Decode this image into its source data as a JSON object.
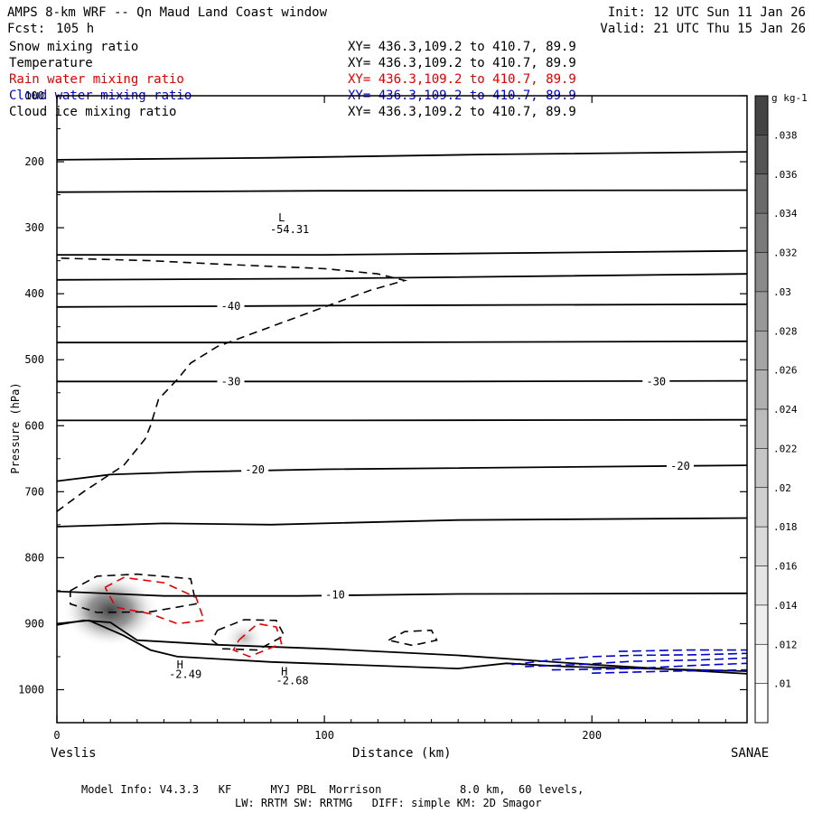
{
  "header": {
    "title": "AMPS 8-km WRF -- Qn Maud Land Coast window",
    "fcst_label": "Fcst:",
    "fcst_value": "105 h",
    "init": "Init: 12 UTC Sun 11 Jan 26",
    "valid": "Valid: 21 UTC Thu 15 Jan 26"
  },
  "fields": [
    {
      "name": "Snow mixing ratio",
      "xy": "XY= 436.3,109.2 to 410.7, 89.9",
      "color": "#000000"
    },
    {
      "name": "Temperature",
      "xy": "XY= 436.3,109.2 to 410.7, 89.9",
      "color": "#000000"
    },
    {
      "name": "Rain water mixing ratio",
      "xy": "XY= 436.3,109.2 to 410.7, 89.9",
      "color": "#e00000"
    },
    {
      "name": "Cloud water mixing ratio",
      "xy": "XY= 436.3,109.2 to 410.7, 89.9",
      "color": "#0000cc"
    },
    {
      "name": "Cloud ice mixing ratio",
      "xy": "XY= 436.3,109.2 to 410.7, 89.9",
      "color": "#000000"
    }
  ],
  "footer": {
    "line1": "Model Info: V4.3.3   KF      MYJ PBL  Morrison            8.0 km,  60 levels,",
    "line2": "LW: RRTM SW: RRTMG   DIFF: simple KM: 2D Smagor"
  },
  "chart_data": {
    "type": "contour",
    "xlabel": "Distance (km)",
    "ylabel": "Pressure (hPa)",
    "xlim": [
      0,
      258
    ],
    "ylim": [
      1050,
      100
    ],
    "x_ticks": [
      0,
      100,
      200
    ],
    "y_ticks": [
      100,
      200,
      300,
      400,
      500,
      600,
      700,
      800,
      900,
      1000
    ],
    "left_endpoint": "Veslis",
    "right_endpoint": "SANAE",
    "colorbar": {
      "unit": "g kg-1",
      "levels": [
        ".01",
        ".012",
        ".014",
        ".016",
        ".018",
        ".02",
        ".022",
        ".024",
        ".026",
        ".028",
        ".03",
        ".032",
        ".034",
        ".036",
        ".038"
      ],
      "colors": [
        "#ffffff",
        "#f6f6f6",
        "#eeeeee",
        "#e4e4e4",
        "#dadada",
        "#d0d0d0",
        "#c6c6c6",
        "#bcbcbc",
        "#b0b0b0",
        "#a4a4a4",
        "#989898",
        "#8a8a8a",
        "#7a7a7a",
        "#6a6a6a",
        "#555555",
        "#444444"
      ]
    },
    "temperature_contours": [
      {
        "points": [
          [
            0,
            197
          ],
          [
            80,
            194
          ],
          [
            160,
            189
          ],
          [
            258,
            185
          ]
        ]
      },
      {
        "points": [
          [
            0,
            246
          ],
          [
            100,
            244
          ],
          [
            258,
            243
          ]
        ]
      },
      {
        "points": [
          [
            0,
            341
          ],
          [
            100,
            341
          ],
          [
            258,
            335
          ]
        ]
      },
      {
        "points": [
          [
            0,
            379
          ],
          [
            100,
            377
          ],
          [
            258,
            370
          ]
        ]
      },
      {
        "points": [
          [
            0,
            420
          ],
          [
            60,
            419
          ],
          [
            100,
            418
          ],
          [
            258,
            416
          ]
        ],
        "label": "-40",
        "label_at": [
          65,
          419
        ]
      },
      {
        "points": [
          [
            0,
            474
          ],
          [
            100,
            474
          ],
          [
            258,
            472
          ]
        ]
      },
      {
        "points": [
          [
            0,
            533
          ],
          [
            60,
            533
          ],
          [
            150,
            533
          ],
          [
            258,
            532
          ]
        ],
        "labels": [
          {
            "text": "-30",
            "at": [
              65,
              533
            ]
          },
          {
            "text": "-30",
            "at": [
              224,
              533
            ]
          }
        ]
      },
      {
        "points": [
          [
            0,
            592
          ],
          [
            100,
            592
          ],
          [
            258,
            591
          ]
        ]
      },
      {
        "points": [
          [
            0,
            684
          ],
          [
            20,
            674
          ],
          [
            50,
            670
          ],
          [
            100,
            666
          ],
          [
            258,
            660
          ]
        ],
        "labels": [
          {
            "text": "-20",
            "at": [
              74,
              667
            ]
          },
          {
            "text": "-20",
            "at": [
              233,
              661
            ]
          }
        ]
      },
      {
        "points": [
          [
            0,
            753
          ],
          [
            40,
            748
          ],
          [
            80,
            750
          ],
          [
            150,
            743
          ],
          [
            258,
            740
          ]
        ]
      },
      {
        "points": [
          [
            0,
            851
          ],
          [
            40,
            858
          ],
          [
            90,
            858
          ],
          [
            150,
            855
          ],
          [
            258,
            854
          ]
        ],
        "label": "-10",
        "label_at": [
          104,
          856
        ]
      },
      {
        "points": [
          [
            0,
            902
          ],
          [
            10,
            895
          ],
          [
            20,
            898
          ],
          [
            30,
            925
          ],
          [
            60,
            932
          ],
          [
            100,
            938
          ],
          [
            150,
            948
          ],
          [
            200,
            962
          ],
          [
            258,
            976
          ]
        ]
      },
      {
        "points": [
          [
            0,
            900
          ],
          [
            12,
            895
          ],
          [
            25,
            918
          ],
          [
            35,
            940
          ],
          [
            45,
            950
          ],
          [
            80,
            958
          ],
          [
            150,
            968
          ],
          [
            168,
            960
          ],
          [
            190,
            965
          ],
          [
            258,
            972
          ]
        ]
      }
    ],
    "snow_contours": [
      {
        "points": [
          [
            0,
            730
          ],
          [
            10,
            700
          ],
          [
            25,
            660
          ],
          [
            33,
            620
          ],
          [
            35,
            600
          ],
          [
            38,
            560
          ],
          [
            45,
            530
          ],
          [
            50,
            505
          ],
          [
            60,
            480
          ],
          [
            80,
            450
          ],
          [
            100,
            420
          ],
          [
            117,
            395
          ],
          [
            130,
            380
          ],
          [
            120,
            370
          ],
          [
            100,
            362
          ],
          [
            60,
            355
          ],
          [
            35,
            350
          ],
          [
            0,
            346
          ]
        ]
      },
      {
        "points": [
          [
            5,
            850
          ],
          [
            15,
            828
          ],
          [
            30,
            825
          ],
          [
            50,
            832
          ],
          [
            52,
            870
          ],
          [
            35,
            882
          ],
          [
            15,
            883
          ],
          [
            5,
            870
          ],
          [
            5,
            850
          ]
        ]
      },
      {
        "points": [
          [
            60,
            910
          ],
          [
            70,
            894
          ],
          [
            82,
            895
          ],
          [
            85,
            918
          ],
          [
            75,
            940
          ],
          [
            62,
            938
          ],
          [
            58,
            925
          ],
          [
            60,
            910
          ]
        ]
      },
      {
        "points": [
          [
            124,
            925
          ],
          [
            130,
            912
          ],
          [
            140,
            910
          ],
          [
            142,
            925
          ],
          [
            133,
            933
          ],
          [
            124,
            925
          ]
        ]
      }
    ],
    "rain_contours": [
      {
        "points": [
          [
            18,
            845
          ],
          [
            25,
            830
          ],
          [
            40,
            838
          ],
          [
            52,
            860
          ],
          [
            55,
            895
          ],
          [
            45,
            900
          ],
          [
            35,
            885
          ],
          [
            22,
            875
          ],
          [
            18,
            845
          ]
        ]
      },
      {
        "points": [
          [
            68,
            925
          ],
          [
            75,
            900
          ],
          [
            82,
            905
          ],
          [
            84,
            930
          ],
          [
            72,
            950
          ],
          [
            66,
            940
          ],
          [
            68,
            925
          ]
        ]
      }
    ],
    "cloud_water_contours": [
      {
        "points": [
          [
            170,
            962
          ],
          [
            185,
            955
          ],
          [
            200,
            950
          ],
          [
            215,
            948
          ],
          [
            240,
            947
          ],
          [
            258,
            945
          ]
        ]
      },
      {
        "points": [
          [
            175,
            965
          ],
          [
            195,
            962
          ],
          [
            215,
            957
          ],
          [
            240,
            955
          ],
          [
            258,
            952
          ]
        ]
      },
      {
        "points": [
          [
            185,
            970
          ],
          [
            215,
            968
          ],
          [
            240,
            963
          ],
          [
            258,
            960
          ]
        ]
      },
      {
        "points": [
          [
            200,
            975
          ],
          [
            230,
            972
          ],
          [
            258,
            970
          ]
        ]
      },
      {
        "points": [
          [
            210,
            942
          ],
          [
            235,
            940
          ],
          [
            258,
            940
          ]
        ]
      }
    ],
    "shading": [
      {
        "x": 20,
        "p": 880,
        "rx": 18,
        "ry": 55,
        "value": ".028"
      },
      {
        "x": 70,
        "p": 922,
        "rx": 8,
        "ry": 25,
        "value": ".016"
      }
    ],
    "annotations": [
      {
        "text": "L",
        "x": 84,
        "p": 290
      },
      {
        "text": "-54.31",
        "x": 87,
        "p": 308
      },
      {
        "text": "H",
        "x": 46,
        "p": 968
      },
      {
        "text": "-2.49",
        "x": 48,
        "p": 982
      },
      {
        "text": "H",
        "x": 85,
        "p": 978
      },
      {
        "text": "-2.68",
        "x": 88,
        "p": 992
      }
    ]
  }
}
